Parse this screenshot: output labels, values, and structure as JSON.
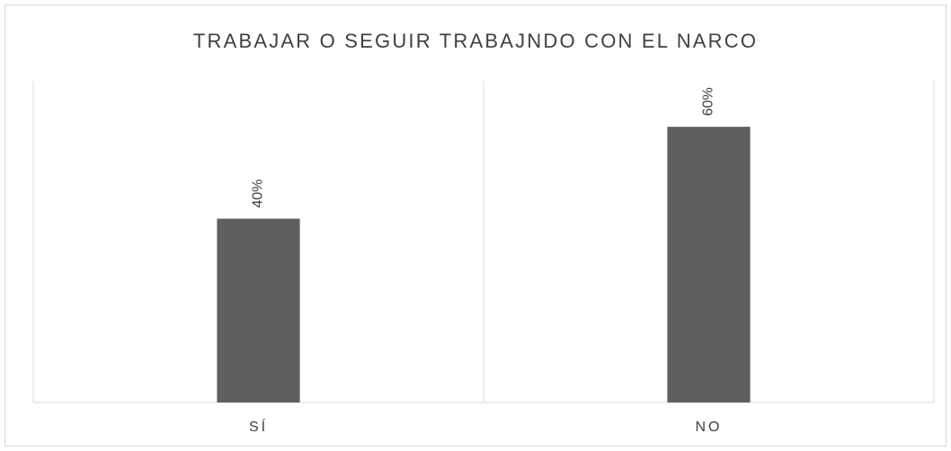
{
  "chart_data": {
    "type": "bar",
    "title": "TRABAJAR O SEGUIR TRABAJNDO CON EL NARCO",
    "categories": [
      "SÍ",
      "NO"
    ],
    "values": [
      40,
      60
    ],
    "value_labels": [
      "40%",
      "60%"
    ],
    "color": "#5f5f5f",
    "ylim": [
      0,
      70
    ]
  }
}
